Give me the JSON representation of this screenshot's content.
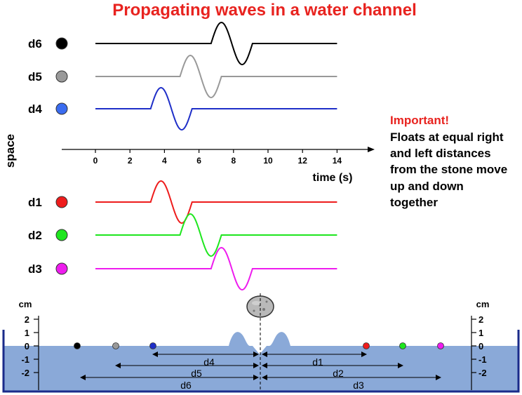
{
  "title": "Propagating waves in a water channel",
  "space_label": "space",
  "time_axis": {
    "label": "time (s)",
    "ticks": [
      "0",
      "2",
      "4",
      "6",
      "8",
      "10",
      "12",
      "14"
    ]
  },
  "traces": [
    {
      "id": "d6",
      "label": "d6",
      "color": "#000000",
      "dot_color": "#000000",
      "start": 6.7,
      "end": 9.1
    },
    {
      "id": "d5",
      "label": "d5",
      "color": "#999999",
      "dot_color": "#999999",
      "start": 4.9,
      "end": 7.3
    },
    {
      "id": "d4",
      "label": "d4",
      "color": "#1f2fc8",
      "dot_color": "#3a6cf0",
      "start": 3.2,
      "end": 5.6
    },
    {
      "id": "d1",
      "label": "d1",
      "color": "#ee1c1c",
      "dot_color": "#ee1c1c",
      "start": 3.2,
      "end": 5.6
    },
    {
      "id": "d2",
      "label": "d2",
      "color": "#1ee61e",
      "dot_color": "#1ee61e",
      "start": 4.9,
      "end": 7.3
    },
    {
      "id": "d3",
      "label": "d3",
      "color": "#ee1cee",
      "dot_color": "#ee1cee",
      "start": 6.7,
      "end": 9.1
    }
  ],
  "note": {
    "heading": "Important!",
    "lines": [
      "Floats at equal right",
      "and left distances",
      "from the stone move",
      "up and down",
      "together"
    ]
  },
  "channel": {
    "water_color": "#8aa9d8",
    "tank_color": "#1a2a8a",
    "unit": "cm",
    "scale_ticks": [
      "2",
      "1",
      "0",
      "-1",
      "-2"
    ],
    "float_colors": {
      "left": [
        "#000000",
        "#999999",
        "#1f2fc8"
      ],
      "right": [
        "#ee1c1c",
        "#1ee61e",
        "#ee1cee"
      ]
    },
    "distances": [
      "d4",
      "d5",
      "d6",
      "d1",
      "d2",
      "d3"
    ]
  }
}
